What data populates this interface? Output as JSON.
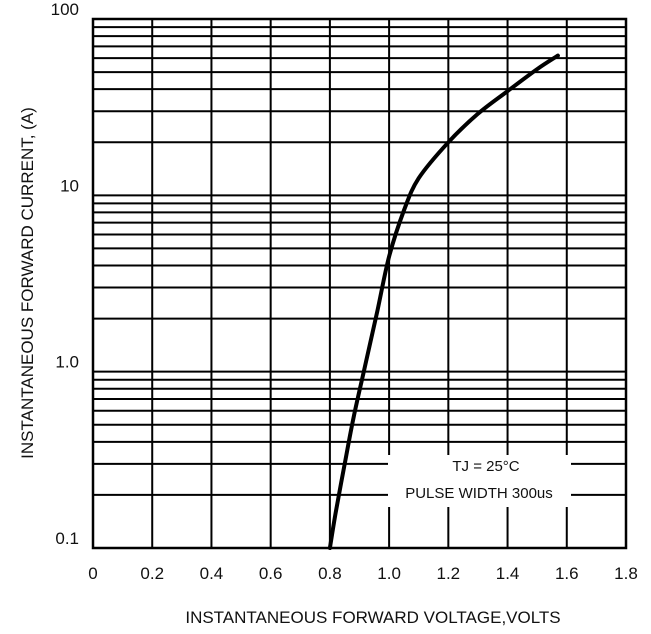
{
  "chart_data": {
    "type": "line",
    "title": "",
    "xlabel": "INSTANTANEOUS FORWARD VOLTAGE,VOLTS",
    "ylabel": "INSTANTANEOUS FORWARD CURRENT, (A)",
    "xlim": [
      0,
      1.8
    ],
    "ylim": [
      0.1,
      100
    ],
    "yscale": "log",
    "grid": true,
    "x_ticks": [
      "0",
      "0.2",
      "0.4",
      "0.6",
      "0.8",
      "1.0",
      "1.2",
      "1.4",
      "1.6",
      "1.8"
    ],
    "y_ticks": [
      "0.1",
      "1.0",
      "10",
      "100"
    ],
    "annotations": [
      "TJ = 25°C",
      "PULSE WIDTH 300us"
    ],
    "series": [
      {
        "x": [
          0.8,
          0.82,
          0.85,
          0.88,
          0.92,
          0.96,
          1.0,
          1.05,
          1.1,
          1.2,
          1.3,
          1.4,
          1.5,
          1.57
        ],
        "y": [
          0.1,
          0.16,
          0.3,
          0.55,
          1.1,
          2.2,
          4.5,
          8.2,
          12.5,
          20,
          29,
          39,
          52,
          62
        ]
      }
    ]
  }
}
